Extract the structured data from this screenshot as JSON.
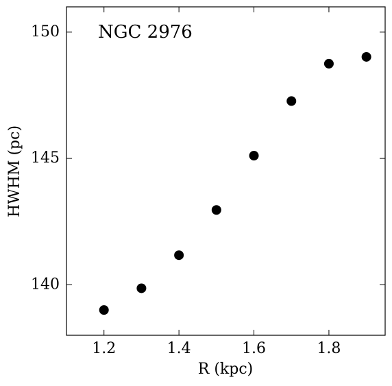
{
  "chart_data": {
    "type": "scatter",
    "annotation": "NGC 2976",
    "x_label": "R (kpc)",
    "y_label": "HWHM (pc)",
    "series": [
      {
        "name": "NGC 2976",
        "color": "#000000",
        "x": [
          1.2,
          1.3,
          1.4,
          1.5,
          1.6,
          1.7,
          1.8,
          1.9
        ],
        "values": [
          139.0,
          139.86,
          141.17,
          142.96,
          145.11,
          147.27,
          148.75,
          149.02
        ]
      }
    ],
    "xlim": [
      1.1,
      1.95
    ],
    "xticks": [
      1.2,
      1.4,
      1.6,
      1.8
    ],
    "ylim": [
      138,
      151
    ],
    "yticks": [
      140,
      145,
      150
    ],
    "grid": false
  }
}
